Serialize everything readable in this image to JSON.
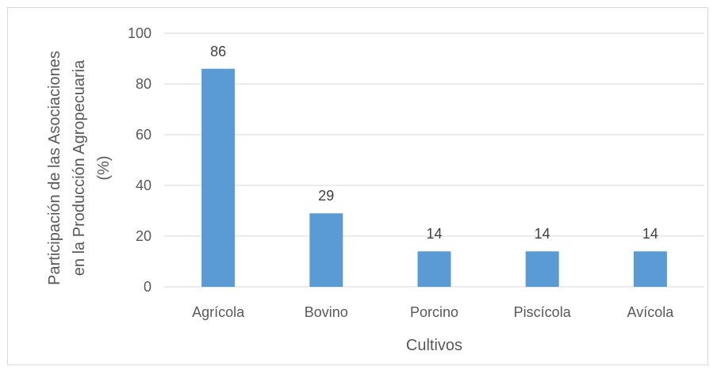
{
  "chart_data": {
    "type": "bar",
    "categories": [
      "Agrícola",
      "Bovino",
      "Porcino",
      "Piscícola",
      "Avícola"
    ],
    "values": [
      86,
      29,
      14,
      14,
      14
    ],
    "data_labels": [
      "86",
      "29",
      "14",
      "14",
      "14"
    ],
    "xlabel": "Cultivos",
    "ylabel_lines": [
      "Participación de las Asociaciones",
      "en la Producción Agropecuaria",
      "(%)"
    ],
    "ylim": [
      0,
      100
    ],
    "yticks": [
      0,
      20,
      40,
      60,
      80,
      100
    ],
    "ytick_labels": [
      "0",
      "20",
      "40",
      "60",
      "80",
      "100"
    ],
    "grid": true,
    "bar_color": "#5b9bd5",
    "grid_color": "#d9d9d9"
  }
}
